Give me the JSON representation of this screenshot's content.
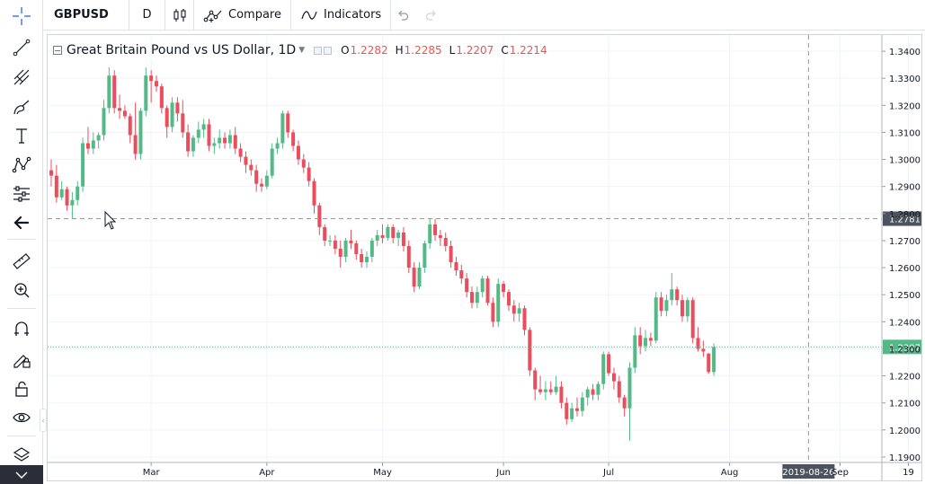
{
  "toolbar": {
    "symbol": "GBPUSD",
    "interval": "D",
    "compare_label": "Compare",
    "indicators_label": "Indicators"
  },
  "left_toolbar": {
    "icons": [
      "crosshair-icon",
      "trend-line-icon",
      "pitchfork-icon",
      "brush-icon",
      "text-icon",
      "pattern-icon",
      "prediction-icon",
      "back-arrow-icon",
      "ruler-icon",
      "zoom-in-icon",
      "magnet-icon",
      "lock-drawing-icon",
      "unlock-icon",
      "eye-icon",
      "layers-icon",
      "chevron-down-icon"
    ]
  },
  "legend": {
    "title": "Great Britain Pound vs US Dollar, 1D",
    "open_label": "O",
    "open": "1.2282",
    "high_label": "H",
    "high": "1.2285",
    "low_label": "L",
    "low": "1.2207",
    "close_label": "C",
    "close": "1.2214"
  },
  "colors": {
    "up": "#53b987",
    "down": "#eb4d5c",
    "grid": "#f0f3fa",
    "crosshair": "#9598a1",
    "price_line": "#53b987",
    "axis_text": "#131722",
    "crosshair_label_bg": "#4c525e"
  },
  "chart_data": {
    "type": "candlestick",
    "symbol": "GBPUSD",
    "interval": "1D",
    "y_ticks": [
      "1.3400",
      "1.3300",
      "1.3200",
      "1.3100",
      "1.3000",
      "1.2900",
      "1.2800",
      "1.2700",
      "1.2600",
      "1.2500",
      "1.2400",
      "1.2300",
      "1.2200",
      "1.2100",
      "1.2000",
      "1.1900"
    ],
    "ylim": [
      1.186,
      1.344
    ],
    "x_ticks": [
      {
        "label": "Mar",
        "index": 19
      },
      {
        "label": "Apr",
        "index": 41
      },
      {
        "label": "May",
        "index": 63
      },
      {
        "label": "Jun",
        "index": 86
      },
      {
        "label": "Jul",
        "index": 106
      },
      {
        "label": "Aug",
        "index": 129
      },
      {
        "label": "Sep",
        "index": 150
      },
      {
        "label": "19",
        "index": 163
      }
    ],
    "crosshair": {
      "x_label": "2019-08-26",
      "index": 144,
      "y_label": "1.2781",
      "y_value": 1.2781
    },
    "last_price": {
      "label": "1.2307",
      "value": 1.2307
    },
    "ohlc": [
      [
        1.296,
        1.3,
        1.29,
        1.294
      ],
      [
        1.294,
        1.298,
        1.284,
        1.286
      ],
      [
        1.286,
        1.292,
        1.285,
        1.289
      ],
      [
        1.289,
        1.29,
        1.281,
        1.283
      ],
      [
        1.283,
        1.288,
        1.278,
        1.285
      ],
      [
        1.285,
        1.292,
        1.283,
        1.29
      ],
      [
        1.29,
        1.308,
        1.288,
        1.306
      ],
      [
        1.306,
        1.312,
        1.302,
        1.304
      ],
      [
        1.304,
        1.31,
        1.302,
        1.307
      ],
      [
        1.307,
        1.31,
        1.304,
        1.309
      ],
      [
        1.309,
        1.322,
        1.307,
        1.319
      ],
      [
        1.319,
        1.334,
        1.317,
        1.331
      ],
      [
        1.331,
        1.333,
        1.317,
        1.319
      ],
      [
        1.319,
        1.324,
        1.315,
        1.318
      ],
      [
        1.318,
        1.32,
        1.315,
        1.316
      ],
      [
        1.316,
        1.317,
        1.306,
        1.309
      ],
      [
        1.309,
        1.321,
        1.3,
        1.302
      ],
      [
        1.302,
        1.319,
        1.3,
        1.318
      ],
      [
        1.318,
        1.334,
        1.316,
        1.331
      ],
      [
        1.331,
        1.333,
        1.321,
        1.329
      ],
      [
        1.329,
        1.331,
        1.325,
        1.327
      ],
      [
        1.327,
        1.328,
        1.317,
        1.319
      ],
      [
        1.319,
        1.32,
        1.308,
        1.312
      ],
      [
        1.312,
        1.323,
        1.31,
        1.321
      ],
      [
        1.321,
        1.323,
        1.314,
        1.317
      ],
      [
        1.317,
        1.322,
        1.308,
        1.31
      ],
      [
        1.31,
        1.313,
        1.301,
        1.303
      ],
      [
        1.303,
        1.309,
        1.301,
        1.308
      ],
      [
        1.308,
        1.314,
        1.306,
        1.311
      ],
      [
        1.311,
        1.315,
        1.308,
        1.313
      ],
      [
        1.313,
        1.315,
        1.303,
        1.305
      ],
      [
        1.305,
        1.308,
        1.302,
        1.306
      ],
      [
        1.306,
        1.311,
        1.304,
        1.308
      ],
      [
        1.308,
        1.31,
        1.304,
        1.306
      ],
      [
        1.306,
        1.311,
        1.304,
        1.309
      ],
      [
        1.309,
        1.312,
        1.302,
        1.304
      ],
      [
        1.304,
        1.306,
        1.299,
        1.301
      ],
      [
        1.301,
        1.303,
        1.295,
        1.298
      ],
      [
        1.298,
        1.3,
        1.294,
        1.296
      ],
      [
        1.296,
        1.298,
        1.288,
        1.291
      ],
      [
        1.291,
        1.293,
        1.288,
        1.29
      ],
      [
        1.29,
        1.296,
        1.289,
        1.294
      ],
      [
        1.294,
        1.306,
        1.293,
        1.304
      ],
      [
        1.304,
        1.308,
        1.302,
        1.306
      ],
      [
        1.306,
        1.318,
        1.304,
        1.317
      ],
      [
        1.317,
        1.318,
        1.308,
        1.31
      ],
      [
        1.31,
        1.311,
        1.303,
        1.305
      ],
      [
        1.305,
        1.307,
        1.298,
        1.3
      ],
      [
        1.3,
        1.302,
        1.295,
        1.297
      ],
      [
        1.297,
        1.299,
        1.29,
        1.292
      ],
      [
        1.292,
        1.293,
        1.28,
        1.283
      ],
      [
        1.283,
        1.284,
        1.272,
        1.275
      ],
      [
        1.275,
        1.276,
        1.268,
        1.27
      ],
      [
        1.27,
        1.272,
        1.268,
        1.27
      ],
      [
        1.27,
        1.272,
        1.265,
        1.267
      ],
      [
        1.267,
        1.27,
        1.26,
        1.264
      ],
      [
        1.264,
        1.271,
        1.262,
        1.27
      ],
      [
        1.27,
        1.274,
        1.267,
        1.269
      ],
      [
        1.269,
        1.27,
        1.263,
        1.265
      ],
      [
        1.265,
        1.267,
        1.26,
        1.262
      ],
      [
        1.262,
        1.266,
        1.26,
        1.264
      ],
      [
        1.264,
        1.271,
        1.262,
        1.27
      ],
      [
        1.27,
        1.274,
        1.268,
        1.272
      ],
      [
        1.272,
        1.276,
        1.269,
        1.271
      ],
      [
        1.271,
        1.276,
        1.27,
        1.275
      ],
      [
        1.275,
        1.276,
        1.269,
        1.271
      ],
      [
        1.271,
        1.274,
        1.268,
        1.273
      ],
      [
        1.273,
        1.275,
        1.266,
        1.268
      ],
      [
        1.268,
        1.27,
        1.258,
        1.26
      ],
      [
        1.26,
        1.262,
        1.251,
        1.253
      ],
      [
        1.253,
        1.262,
        1.252,
        1.26
      ],
      [
        1.26,
        1.27,
        1.258,
        1.269
      ],
      [
        1.269,
        1.278,
        1.267,
        1.276
      ],
      [
        1.276,
        1.278,
        1.27,
        1.272
      ],
      [
        1.272,
        1.274,
        1.268,
        1.271
      ],
      [
        1.271,
        1.273,
        1.266,
        1.268
      ],
      [
        1.268,
        1.27,
        1.26,
        1.262
      ],
      [
        1.262,
        1.264,
        1.257,
        1.259
      ],
      [
        1.259,
        1.261,
        1.254,
        1.256
      ],
      [
        1.256,
        1.258,
        1.249,
        1.251
      ],
      [
        1.251,
        1.253,
        1.245,
        1.247
      ],
      [
        1.247,
        1.253,
        1.245,
        1.251
      ],
      [
        1.251,
        1.257,
        1.249,
        1.256
      ],
      [
        1.256,
        1.257,
        1.246,
        1.247
      ],
      [
        1.247,
        1.249,
        1.238,
        1.24
      ],
      [
        1.24,
        1.256,
        1.238,
        1.254
      ],
      [
        1.254,
        1.255,
        1.249,
        1.251
      ],
      [
        1.251,
        1.252,
        1.244,
        1.246
      ],
      [
        1.246,
        1.248,
        1.24,
        1.243
      ],
      [
        1.243,
        1.247,
        1.24,
        1.245
      ],
      [
        1.245,
        1.246,
        1.235,
        1.237
      ],
      [
        1.237,
        1.238,
        1.22,
        1.222
      ],
      [
        1.222,
        1.223,
        1.211,
        1.215
      ],
      [
        1.215,
        1.22,
        1.213,
        1.214
      ],
      [
        1.214,
        1.218,
        1.211,
        1.215
      ],
      [
        1.215,
        1.218,
        1.213,
        1.214
      ],
      [
        1.214,
        1.22,
        1.213,
        1.216
      ],
      [
        1.216,
        1.218,
        1.208,
        1.21
      ],
      [
        1.21,
        1.212,
        1.202,
        1.204
      ],
      [
        1.204,
        1.21,
        1.203,
        1.208
      ],
      [
        1.208,
        1.212,
        1.205,
        1.207
      ],
      [
        1.207,
        1.214,
        1.205,
        1.212
      ],
      [
        1.212,
        1.216,
        1.209,
        1.215
      ],
      [
        1.215,
        1.217,
        1.211,
        1.213
      ],
      [
        1.213,
        1.218,
        1.211,
        1.217
      ],
      [
        1.217,
        1.229,
        1.215,
        1.228
      ],
      [
        1.228,
        1.229,
        1.22,
        1.221
      ],
      [
        1.221,
        1.223,
        1.215,
        1.218
      ],
      [
        1.218,
        1.22,
        1.21,
        1.212
      ],
      [
        1.212,
        1.213,
        1.205,
        1.208
      ],
      [
        1.208,
        1.225,
        1.196,
        1.223
      ],
      [
        1.223,
        1.238,
        1.221,
        1.235
      ],
      [
        1.235,
        1.238,
        1.228,
        1.231
      ],
      [
        1.231,
        1.237,
        1.229,
        1.234
      ],
      [
        1.234,
        1.236,
        1.231,
        1.233
      ],
      [
        1.233,
        1.251,
        1.232,
        1.249
      ],
      [
        1.249,
        1.251,
        1.242,
        1.244
      ],
      [
        1.244,
        1.25,
        1.242,
        1.248
      ],
      [
        1.248,
        1.258,
        1.246,
        1.252
      ],
      [
        1.252,
        1.253,
        1.246,
        1.248
      ],
      [
        1.248,
        1.25,
        1.24,
        1.242
      ],
      [
        1.242,
        1.249,
        1.24,
        1.248
      ],
      [
        1.248,
        1.249,
        1.232,
        1.234
      ],
      [
        1.234,
        1.238,
        1.229,
        1.23
      ],
      [
        1.23,
        1.233,
        1.227,
        1.229
      ],
      [
        1.2282,
        1.2285,
        1.2207,
        1.2214
      ],
      [
        1.2214,
        1.232,
        1.22,
        1.2307
      ]
    ]
  }
}
